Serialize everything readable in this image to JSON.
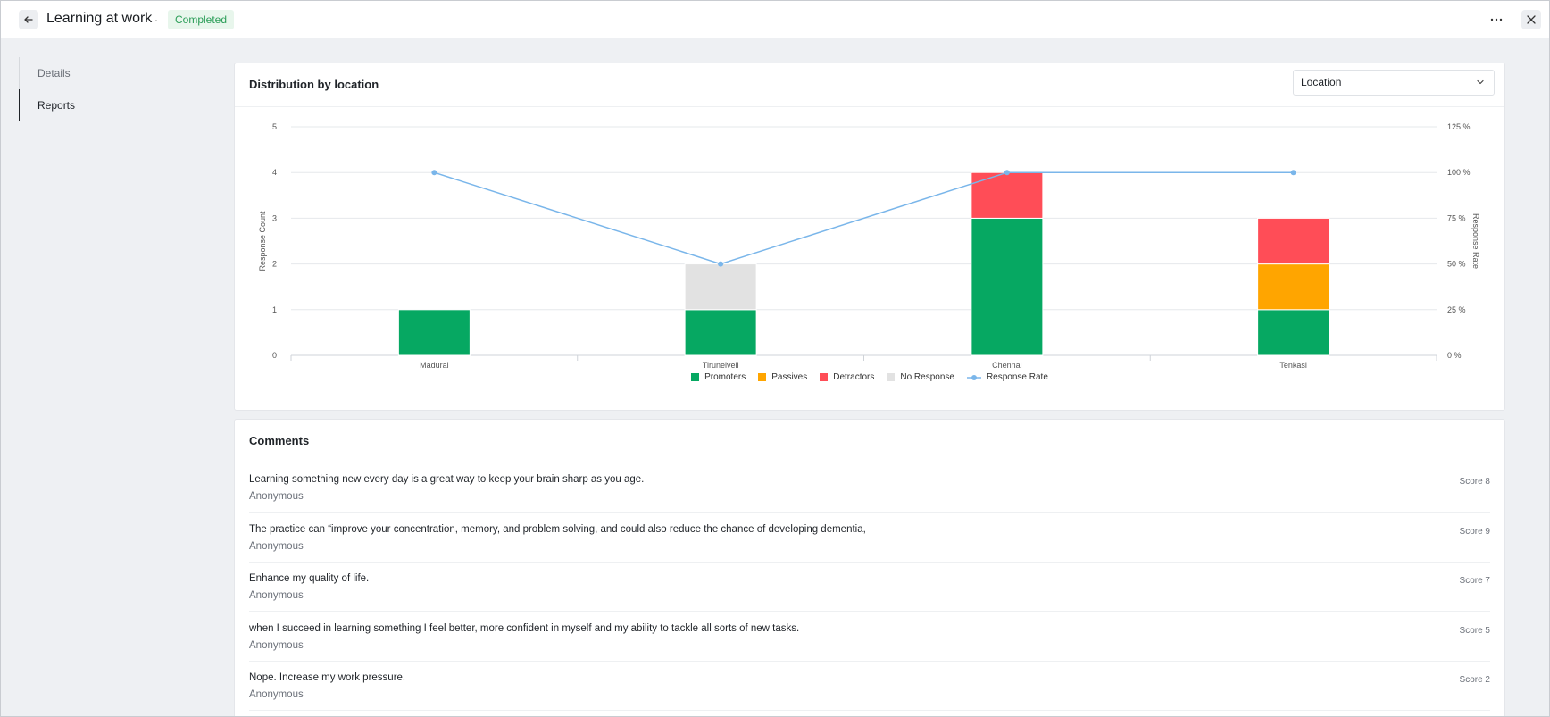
{
  "header": {
    "title": "Learning at work",
    "separator": ".",
    "status": "Completed"
  },
  "sidebar": {
    "items": [
      {
        "label": "Details",
        "active": false
      },
      {
        "label": "Reports",
        "active": true
      }
    ]
  },
  "chart_card": {
    "title": "Distribution by location",
    "select_value": "Location"
  },
  "chart_data": {
    "type": "bar",
    "categories": [
      "Madurai",
      "Tirunelveli",
      "Chennai",
      "Tenkasi"
    ],
    "series": [
      {
        "name": "Promoters",
        "values": [
          1,
          1,
          3,
          1
        ],
        "color": "#06a862"
      },
      {
        "name": "Passives",
        "values": [
          0,
          0,
          0,
          1
        ],
        "color": "#ffa500"
      },
      {
        "name": "Detractors",
        "values": [
          0,
          0,
          1,
          1
        ],
        "color": "#ff4d57"
      },
      {
        "name": "No Response",
        "values": [
          0,
          1,
          0,
          0
        ],
        "color": "#e2e2e2"
      }
    ],
    "line_series": {
      "name": "Response Rate",
      "values": [
        100,
        50,
        100,
        100
      ],
      "color": "#7ab6ea"
    },
    "ylabel": "Response Count",
    "y2label": "Response Rate",
    "ylim": [
      0,
      5
    ],
    "y2lim": [
      0,
      125
    ],
    "yticks": [
      "0",
      "1",
      "2",
      "3",
      "4",
      "5"
    ],
    "y2ticks": [
      "0 %",
      "25 %",
      "50 %",
      "75 %",
      "100 %",
      "125 %"
    ],
    "stacked": true,
    "grid": true,
    "legend": "bottom-center"
  },
  "comments": {
    "title": "Comments",
    "items": [
      {
        "text": "Learning something new every day is a great way to keep your brain sharp as you age.",
        "author": "Anonymous",
        "score": "Score 8"
      },
      {
        "text": "The practice can “improve your concentration, memory, and problem solving, and could also reduce the chance of developing dementia,",
        "author": "Anonymous",
        "score": "Score 9"
      },
      {
        "text": "Enhance my quality of life.",
        "author": "Anonymous",
        "score": "Score 7"
      },
      {
        "text": "when I succeed in learning something I feel better, more confident in myself and my ability to tackle all sorts of new tasks.",
        "author": "Anonymous",
        "score": "Score 5"
      },
      {
        "text": "Nope. Increase my work pressure.",
        "author": "Anonymous",
        "score": "Score 2"
      }
    ]
  },
  "icons": {
    "back": "arrow-left-icon",
    "more": "more-horizontal-icon",
    "close": "close-icon",
    "select": "chevron-down-icon"
  }
}
